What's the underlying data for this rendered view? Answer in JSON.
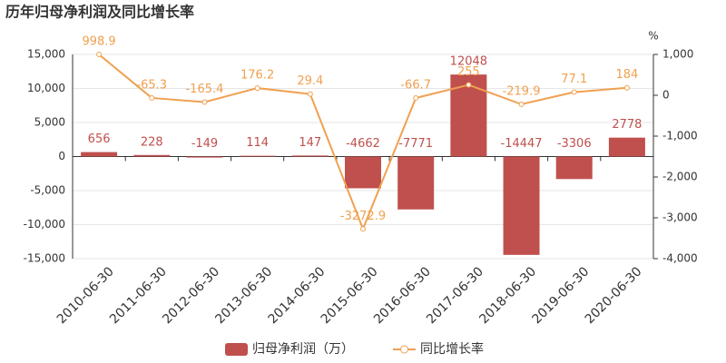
{
  "chart_data": {
    "type": "combo",
    "title": "历年归母净利润及同比增长率",
    "categories": [
      "2010-06-30",
      "2011-06-30",
      "2012-06-30",
      "2013-06-30",
      "2014-06-30",
      "2015-06-30",
      "2016-06-30",
      "2017-06-30",
      "2018-06-30",
      "2019-06-30",
      "2020-06-30"
    ],
    "series": [
      {
        "name": "归母净利润（万）",
        "type": "bar",
        "color": "#c0504d",
        "values": [
          656,
          228,
          -149,
          114,
          147,
          -4662,
          -7771,
          12048,
          -14447,
          -3306,
          2778
        ]
      },
      {
        "name": "同比增长率",
        "type": "line",
        "axis": "y2",
        "color": "#f0a050",
        "values": [
          998.9,
          -65.3,
          -165.4,
          176.2,
          29.4,
          -3272.9,
          -66.7,
          255,
          -219.9,
          77.1,
          184
        ]
      }
    ],
    "ylim": [
      -15000,
      15000
    ],
    "yticks": [
      {
        "value": -15000,
        "label": "-15,000"
      },
      {
        "value": -10000,
        "label": "-10,000"
      },
      {
        "value": -5000,
        "label": "-5,000"
      },
      0,
      {
        "value": 5000,
        "label": "5,000"
      },
      {
        "value": 10000,
        "label": "10,000"
      },
      {
        "value": 15000,
        "label": "15,000"
      }
    ],
    "y2lim": [
      -4000,
      1000
    ],
    "y2ticks": [
      {
        "value": -4000,
        "label": "-4,000"
      },
      {
        "value": -3000,
        "label": "-3,000"
      },
      {
        "value": -2000,
        "label": "-2,000"
      },
      {
        "value": -1000,
        "label": "-1,000"
      },
      0,
      {
        "value": 1000,
        "label": "1,000"
      }
    ],
    "y2_unit": "%",
    "grid": true
  }
}
